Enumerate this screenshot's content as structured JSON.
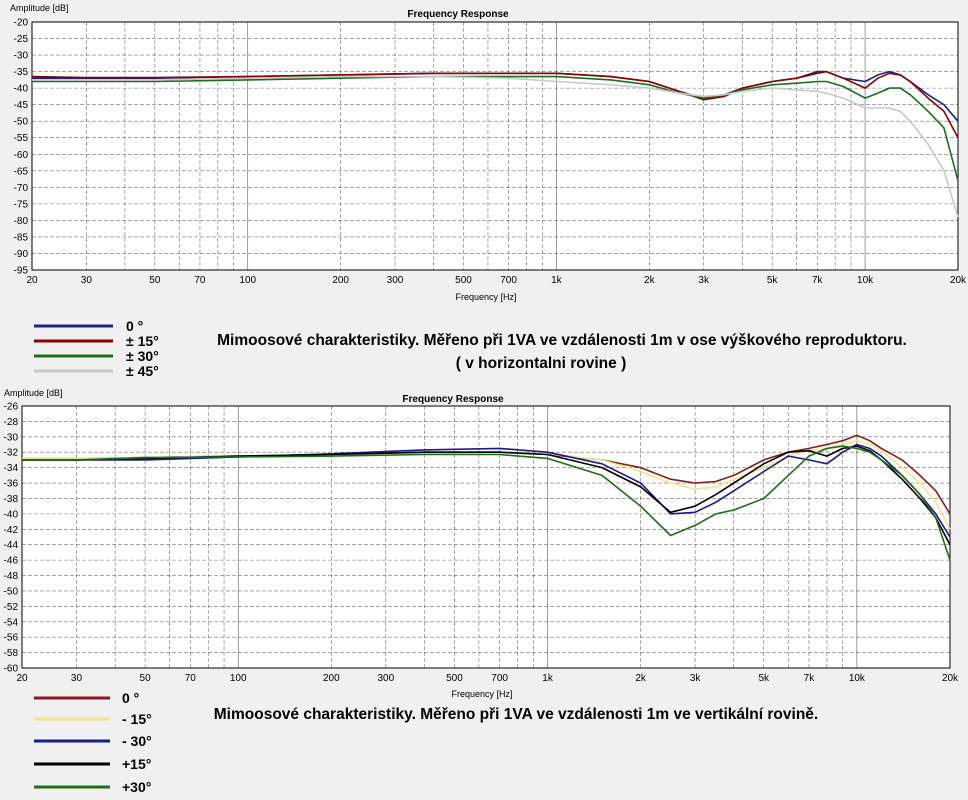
{
  "chart_data": [
    {
      "type": "line",
      "title": "Frequency Response",
      "xlabel": "Frequency [Hz]",
      "ylabel": "Amplitude [dB]",
      "xscale": "log",
      "xlim": [
        20,
        20000
      ],
      "ylim": [
        -95,
        -20
      ],
      "yticks": [
        -20,
        -25,
        -30,
        -35,
        -40,
        -45,
        -50,
        -55,
        -60,
        -65,
        -70,
        -75,
        -80,
        -85,
        -90,
        -95
      ],
      "xticks": [
        {
          "v": 20,
          "label": "20"
        },
        {
          "v": 30,
          "label": "30"
        },
        {
          "v": 50,
          "label": "50"
        },
        {
          "v": 70,
          "label": "70"
        },
        {
          "v": 100,
          "label": "100"
        },
        {
          "v": 200,
          "label": "200"
        },
        {
          "v": 300,
          "label": "300"
        },
        {
          "v": 500,
          "label": "500"
        },
        {
          "v": 700,
          "label": "700"
        },
        {
          "v": 1000,
          "label": "1k"
        },
        {
          "v": 2000,
          "label": "2k"
        },
        {
          "v": 3000,
          "label": "3k"
        },
        {
          "v": 5000,
          "label": "5k"
        },
        {
          "v": 7000,
          "label": "7k"
        },
        {
          "v": 10000,
          "label": "10k"
        },
        {
          "v": 20000,
          "label": "20k"
        }
      ],
      "grid": true,
      "series": [
        {
          "name": "0 °",
          "color": "#1a237e",
          "x": [
            20,
            30,
            50,
            100,
            200,
            400,
            700,
            1000,
            1500,
            2000,
            2500,
            3000,
            3500,
            4000,
            5000,
            6000,
            7000,
            7500,
            8500,
            10000,
            11000,
            12000,
            13000,
            14000,
            16000,
            18000,
            20000
          ],
          "y": [
            -37,
            -37,
            -37,
            -36.5,
            -36,
            -35.5,
            -35.5,
            -35.5,
            -36.5,
            -38,
            -41,
            -43,
            -42,
            -40,
            -38,
            -37,
            -35,
            -35,
            -37,
            -38,
            -36,
            -35,
            -36,
            -38,
            -42,
            -45,
            -50
          ]
        },
        {
          "name": "± 15°",
          "color": "#8b0000",
          "x": [
            20,
            30,
            50,
            100,
            200,
            400,
            700,
            1000,
            1500,
            2000,
            2500,
            3000,
            3500,
            4000,
            5000,
            6000,
            7000,
            7500,
            8500,
            10000,
            11000,
            12000,
            13000,
            14000,
            16000,
            18000,
            20000
          ],
          "y": [
            -36.5,
            -36.8,
            -36.8,
            -36.5,
            -36,
            -35.5,
            -35.5,
            -35.5,
            -36.5,
            -38,
            -41,
            -43.5,
            -42.5,
            -40,
            -38,
            -37,
            -35.5,
            -35,
            -37,
            -40,
            -37,
            -35.5,
            -36,
            -38,
            -43,
            -47,
            -55
          ]
        },
        {
          "name": "± 30°",
          "color": "#1b6e1b",
          "x": [
            20,
            30,
            50,
            100,
            200,
            400,
            700,
            1000,
            1500,
            2000,
            2500,
            3000,
            3500,
            4000,
            5000,
            6000,
            7000,
            7500,
            8500,
            10000,
            11000,
            12000,
            13000,
            14000,
            16000,
            18000,
            20000
          ],
          "y": [
            -38,
            -38,
            -38,
            -37.5,
            -37,
            -36.5,
            -36.5,
            -36.5,
            -37.5,
            -39,
            -41.5,
            -43,
            -42,
            -40.5,
            -39,
            -38.5,
            -38,
            -38,
            -39.5,
            -43,
            -41.5,
            -40,
            -40,
            -42,
            -47,
            -52,
            -68
          ]
        },
        {
          "name": "± 45°",
          "color": "#c8c8c8",
          "x": [
            20,
            30,
            50,
            100,
            200,
            400,
            700,
            1000,
            1500,
            2000,
            2500,
            3000,
            3500,
            4000,
            5000,
            6000,
            7000,
            7500,
            8500,
            10000,
            11000,
            12000,
            13000,
            14000,
            16000,
            18000,
            20000
          ],
          "y": [
            -37.5,
            -37.5,
            -37.5,
            -37,
            -36.5,
            -36.5,
            -37,
            -38,
            -39,
            -40,
            -41.5,
            -42.5,
            -42,
            -41,
            -40,
            -40.5,
            -41,
            -41.5,
            -43,
            -46,
            -46,
            -46,
            -47,
            -50,
            -57,
            -65,
            -79
          ]
        }
      ],
      "legend_title_lines": [],
      "caption": "Mimoosové charakteristiky. Měřeno při 1VA ve vzdálenosti 1m v ose výškového reproduktoru.",
      "caption2": "( v horizontalni rovine )"
    },
    {
      "type": "line",
      "title": "Frequency Response",
      "xlabel": "Frequency [Hz]",
      "ylabel": "Amplitude [dB]",
      "xscale": "log",
      "xlim": [
        20,
        20000
      ],
      "ylim": [
        -60,
        -26
      ],
      "yticks": [
        -26,
        -28,
        -30,
        -32,
        -34,
        -36,
        -38,
        -40,
        -42,
        -44,
        -46,
        -48,
        -50,
        -52,
        -54,
        -56,
        -58,
        -60
      ],
      "xticks": [
        {
          "v": 20,
          "label": "20"
        },
        {
          "v": 30,
          "label": "30"
        },
        {
          "v": 50,
          "label": "50"
        },
        {
          "v": 70,
          "label": "70"
        },
        {
          "v": 100,
          "label": "100"
        },
        {
          "v": 200,
          "label": "200"
        },
        {
          "v": 300,
          "label": "300"
        },
        {
          "v": 500,
          "label": "500"
        },
        {
          "v": 700,
          "label": "700"
        },
        {
          "v": 1000,
          "label": "1k"
        },
        {
          "v": 2000,
          "label": "2k"
        },
        {
          "v": 3000,
          "label": "3k"
        },
        {
          "v": 5000,
          "label": "5k"
        },
        {
          "v": 7000,
          "label": "7k"
        },
        {
          "v": 10000,
          "label": "10k"
        },
        {
          "v": 20000,
          "label": "20k"
        }
      ],
      "grid": true,
      "series": [
        {
          "name": "0 °",
          "color": "#8b1a1a",
          "x": [
            20,
            30,
            50,
            100,
            200,
            400,
            700,
            1000,
            1500,
            2000,
            2500,
            3000,
            3500,
            4000,
            5000,
            6000,
            7000,
            8000,
            9000,
            10000,
            11000,
            12000,
            14000,
            16000,
            18000,
            20000
          ],
          "y": [
            -32.8,
            -32.8,
            -32.7,
            -32.5,
            -32.3,
            -32,
            -32,
            -32.3,
            -33,
            -34,
            -35.5,
            -36,
            -35.8,
            -35,
            -33,
            -32,
            -31.5,
            -31,
            -30.5,
            -29.8,
            -30.5,
            -31.5,
            -33,
            -35,
            -37,
            -40
          ]
        },
        {
          "name": "- 15°",
          "color": "#f0e68c",
          "x": [
            20,
            30,
            50,
            100,
            200,
            400,
            700,
            1000,
            1500,
            2000,
            2500,
            3000,
            3500,
            4000,
            5000,
            6000,
            7000,
            8000,
            9000,
            10000,
            11000,
            12000,
            14000,
            16000,
            18000,
            20000
          ],
          "y": [
            -32.8,
            -32.8,
            -32.7,
            -32.5,
            -32.3,
            -32.2,
            -32,
            -32.2,
            -33,
            -34.5,
            -36,
            -36.8,
            -36.5,
            -35.5,
            -34,
            -32.5,
            -31.8,
            -31.5,
            -31,
            -30.5,
            -31,
            -31.8,
            -34,
            -36,
            -38.5,
            -42
          ]
        },
        {
          "name": "- 30°",
          "color": "#1a1a8c",
          "x": [
            20,
            30,
            50,
            100,
            200,
            400,
            700,
            1000,
            1500,
            2000,
            2500,
            3000,
            3500,
            4000,
            5000,
            6000,
            7000,
            8000,
            9000,
            10000,
            11000,
            12000,
            14000,
            16000,
            18000,
            20000
          ],
          "y": [
            -33,
            -33,
            -33,
            -32.6,
            -32.2,
            -31.7,
            -31.5,
            -32,
            -33.5,
            -36,
            -40,
            -39.8,
            -38.5,
            -37,
            -34.5,
            -32.5,
            -33,
            -33.5,
            -32,
            -31,
            -31.5,
            -32.5,
            -35,
            -37.5,
            -40,
            -43
          ]
        },
        {
          "name": "+15°",
          "color": "#000000",
          "x": [
            20,
            30,
            50,
            100,
            200,
            400,
            700,
            1000,
            1500,
            2000,
            2500,
            3000,
            3500,
            4000,
            5000,
            6000,
            7000,
            8000,
            9000,
            10000,
            11000,
            12000,
            14000,
            16000,
            18000,
            20000
          ],
          "y": [
            -33,
            -33,
            -32.8,
            -32.5,
            -32.3,
            -32,
            -32,
            -32.3,
            -34,
            -36.5,
            -39.8,
            -39,
            -37.5,
            -36,
            -33.5,
            -32,
            -31.8,
            -32.5,
            -31.5,
            -31.2,
            -31.8,
            -33,
            -35.5,
            -38,
            -40.5,
            -44
          ]
        },
        {
          "name": "+30°",
          "color": "#1b6e1b",
          "x": [
            20,
            30,
            50,
            100,
            200,
            400,
            700,
            1000,
            1500,
            2000,
            2500,
            3000,
            3500,
            4000,
            5000,
            6000,
            7000,
            8000,
            9000,
            10000,
            11000,
            12000,
            14000,
            16000,
            18000,
            20000
          ],
          "y": [
            -33,
            -33,
            -32.7,
            -32.6,
            -32.5,
            -32.3,
            -32.3,
            -32.8,
            -35,
            -39,
            -42.8,
            -41.5,
            -40,
            -39.5,
            -38,
            -35,
            -32.5,
            -31.5,
            -31.2,
            -31.5,
            -32,
            -33,
            -35,
            -37.5,
            -40.5,
            -46
          ]
        }
      ],
      "caption": "Mimoosové charakteristiky. Měřeno při 1VA ve vzdálenosti 1m  ve vertikální rovině."
    }
  ]
}
